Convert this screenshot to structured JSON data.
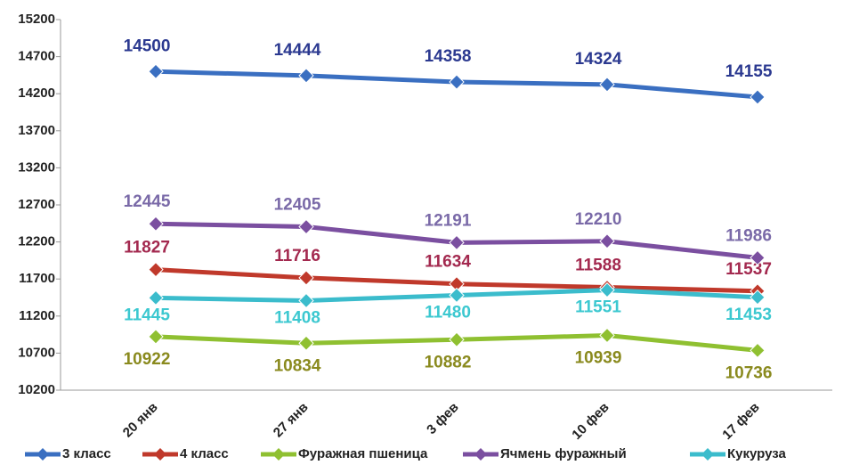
{
  "chart_data": {
    "type": "line",
    "categories": [
      "20 янв",
      "27 янв",
      "3 фев",
      "10 фев",
      "17 фев"
    ],
    "series": [
      {
        "name": "3 класс",
        "color": "#3a6fc1",
        "label_color": "#2b3990",
        "values": [
          14500,
          14444,
          14358,
          14324,
          14155
        ]
      },
      {
        "name": "4 класс",
        "color": "#c0392b",
        "label_color": "#a3294f",
        "values": [
          11827,
          11716,
          11634,
          11588,
          11537
        ]
      },
      {
        "name": "Фуражная пшеница",
        "color": "#8fc031",
        "label_color": "#8a8a1e",
        "values": [
          10922,
          10834,
          10882,
          10939,
          10736
        ]
      },
      {
        "name": "Ячмень фуражный",
        "color": "#7b4fa0",
        "label_color": "#7a6aa8",
        "values": [
          12445,
          12405,
          12191,
          12210,
          11986
        ]
      },
      {
        "name": "Кукуруза",
        "color": "#3bbccc",
        "label_color": "#3cc8d0",
        "values": [
          11445,
          11408,
          11480,
          11551,
          11453
        ]
      }
    ],
    "ylim": [
      10200,
      15200
    ],
    "yticks": [
      10200,
      10700,
      11200,
      11700,
      12200,
      12700,
      13200,
      13700,
      14200,
      14700,
      15200
    ],
    "grid": false
  }
}
